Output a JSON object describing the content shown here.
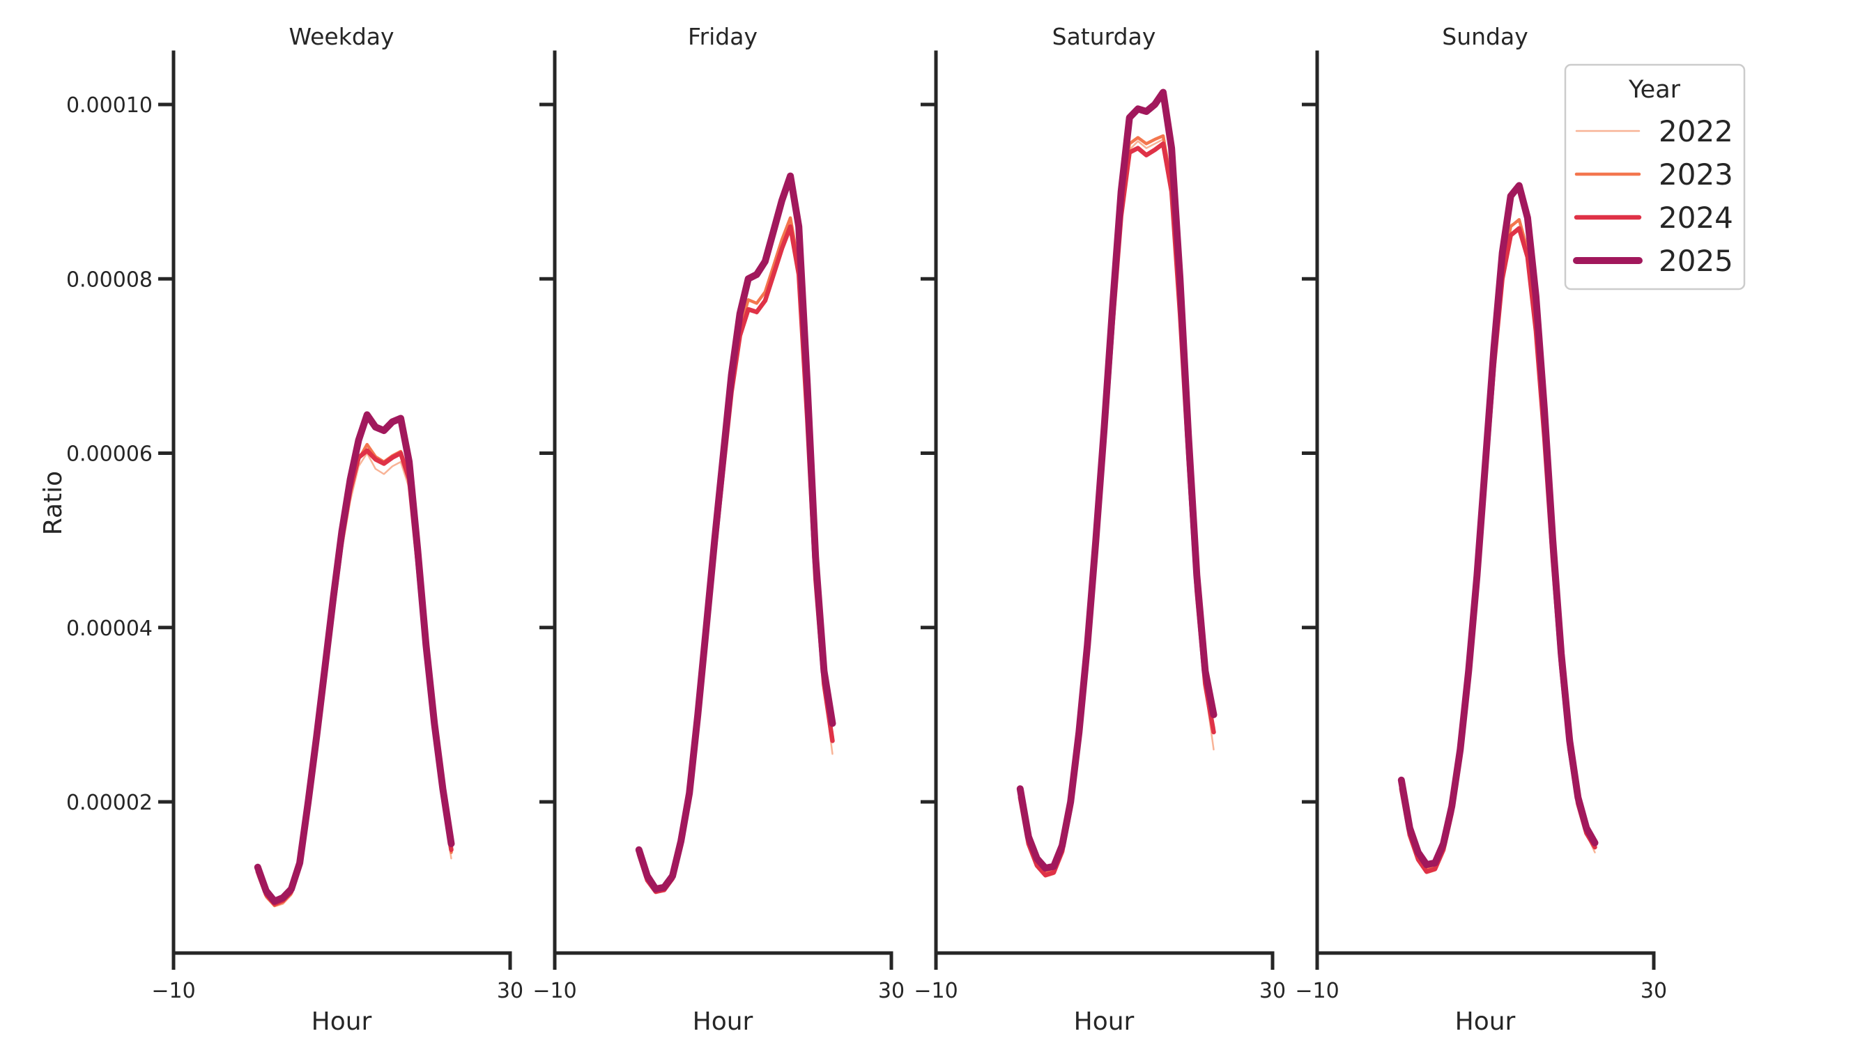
{
  "chart_data": {
    "type": "line",
    "facet_by": "day type",
    "xlabel": "Hour",
    "ylabel": "Ratio",
    "x_axis": {
      "label": "Hour",
      "range": [
        -10,
        30
      ],
      "ticks": [
        -10,
        30
      ],
      "tick_labels": [
        "−10",
        "30"
      ]
    },
    "y_axis": {
      "label": "Ratio",
      "ticks": [
        0.0001,
        8e-05,
        6e-05,
        4e-05,
        2e-05
      ],
      "tick_labels": [
        "0.00010",
        "0.00008",
        "0.00006",
        "0.00004",
        "0.00002"
      ],
      "grid": false
    },
    "legend": {
      "title": "Year",
      "position": "upper right",
      "entries": [
        {
          "label": "2022",
          "color": "#F8B396",
          "line_width": 2.5
        },
        {
          "label": "2023",
          "color": "#F3764E",
          "line_width": 4.5
        },
        {
          "label": "2024",
          "color": "#DF3247",
          "line_width": 6.5
        },
        {
          "label": "2025",
          "color": "#A1185C",
          "line_width": 10
        }
      ]
    },
    "hours": [
      0,
      1,
      2,
      3,
      4,
      5,
      6,
      7,
      8,
      9,
      10,
      11,
      12,
      13,
      14,
      15,
      16,
      17,
      18,
      19,
      20,
      21,
      22,
      23
    ],
    "panels": [
      {
        "title": "Weekday",
        "series": [
          {
            "name": "2022",
            "values": [
              1.15e-05,
              9e-06,
              8e-06,
              8.3e-06,
              9.3e-06,
              1.21e-05,
              1.88e-05,
              2.6e-05,
              3.38e-05,
              4.15e-05,
              4.88e-05,
              5.45e-05,
              5.85e-05,
              6e-05,
              5.82e-05,
              5.76e-05,
              5.85e-05,
              5.9e-05,
              5.6e-05,
              4.68e-05,
              3.62e-05,
              2.76e-05,
              2e-05,
              1.35e-05
            ]
          },
          {
            "name": "2023",
            "values": [
              1.18e-05,
              9.2e-06,
              8.1e-06,
              8.5e-06,
              9.5e-06,
              1.24e-05,
              1.92e-05,
              2.65e-05,
              3.43e-05,
              4.21e-05,
              4.95e-05,
              5.53e-05,
              5.93e-05,
              6.1e-05,
              5.96e-05,
              5.9e-05,
              5.97e-05,
              6.02e-05,
              5.72e-05,
              4.77e-05,
              3.72e-05,
              2.84e-05,
              2.06e-05,
              1.42e-05
            ]
          },
          {
            "name": "2024",
            "values": [
              1.2e-05,
              9.4e-06,
              8.3e-06,
              8.7e-06,
              9.7e-06,
              1.26e-05,
              1.94e-05,
              2.68e-05,
              3.46e-05,
              4.25e-05,
              5e-05,
              5.58e-05,
              5.95e-05,
              6.03e-05,
              5.93e-05,
              5.88e-05,
              5.95e-05,
              6e-05,
              5.7e-05,
              4.75e-05,
              3.7e-05,
              2.82e-05,
              2.08e-05,
              1.45e-05
            ]
          },
          {
            "name": "2025",
            "values": [
              1.25e-05,
              9.8e-06,
              8.6e-06,
              9e-06,
              1e-05,
              1.3e-05,
              2e-05,
              2.75e-05,
              3.55e-05,
              4.35e-05,
              5.1e-05,
              5.7e-05,
              6.15e-05,
              6.44e-05,
              6.3e-05,
              6.26e-05,
              6.36e-05,
              6.4e-05,
              5.9e-05,
              4.9e-05,
              3.8e-05,
              2.9e-05,
              2.15e-05,
              1.52e-05
            ]
          }
        ]
      },
      {
        "title": "Friday",
        "series": [
          {
            "name": "2022",
            "values": [
              1.37e-05,
              1.08e-05,
              9.5e-06,
              9.8e-06,
              1.11e-05,
              1.49e-05,
              2.02e-05,
              2.9e-05,
              3.87e-05,
              4.85e-05,
              5.77e-05,
              6.67e-05,
              7.36e-05,
              7.66e-05,
              7.6e-05,
              7.73e-05,
              8.03e-05,
              8.35e-05,
              8.6e-05,
              8.03e-05,
              6.36e-05,
              4.5e-05,
              3.3e-05,
              2.55e-05
            ]
          },
          {
            "name": "2023",
            "values": [
              1.4e-05,
              1.11e-05,
              9.7e-06,
              1e-05,
              1.13e-05,
              1.52e-05,
              2.06e-05,
              2.94e-05,
              3.93e-05,
              4.92e-05,
              5.85e-05,
              6.76e-05,
              7.42e-05,
              7.76e-05,
              7.72e-05,
              7.85e-05,
              8.15e-05,
              8.45e-05,
              8.7e-05,
              8.15e-05,
              6.47e-05,
              4.6e-05,
              3.38e-05,
              2.75e-05
            ]
          },
          {
            "name": "2024",
            "values": [
              1.4e-05,
              1.1e-05,
              9.7e-06,
              9.9e-06,
              1.12e-05,
              1.5e-05,
              2.04e-05,
              2.92e-05,
              3.9e-05,
              4.88e-05,
              5.8e-05,
              6.7e-05,
              7.35e-05,
              7.65e-05,
              7.62e-05,
              7.75e-05,
              8.05e-05,
              8.35e-05,
              8.6e-05,
              8.05e-05,
              6.4e-05,
              4.55e-05,
              3.35e-05,
              2.7e-05
            ]
          },
          {
            "name": "2025",
            "values": [
              1.45e-05,
              1.15e-05,
              1e-05,
              1.02e-05,
              1.15e-05,
              1.55e-05,
              2.1e-05,
              3e-05,
              4e-05,
              5e-05,
              5.95e-05,
              6.9e-05,
              7.6e-05,
              8e-05,
              8.05e-05,
              8.2e-05,
              8.55e-05,
              8.9e-05,
              9.18e-05,
              8.6e-05,
              6.8e-05,
              4.8e-05,
              3.5e-05,
              2.9e-05
            ]
          }
        ]
      },
      {
        "title": "Saturday",
        "series": [
          {
            "name": "2022",
            "values": [
              2.02e-05,
              1.5e-05,
              1.25e-05,
              1.14e-05,
              1.17e-05,
              1.41e-05,
              1.9e-05,
              2.7e-05,
              3.66e-05,
              4.84e-05,
              6.1e-05,
              7.45e-05,
              8.68e-05,
              9.48e-05,
              9.58e-05,
              9.5e-05,
              9.55e-05,
              9.6e-05,
              9.02e-05,
              7.6e-05,
              5.9e-05,
              4.38e-05,
              3.3e-05,
              2.6e-05
            ]
          },
          {
            "name": "2023",
            "values": [
              2.07e-05,
              1.54e-05,
              1.29e-05,
              1.18e-05,
              1.21e-05,
              1.45e-05,
              1.95e-05,
              2.75e-05,
              3.74e-05,
              4.92e-05,
              6.2e-05,
              7.56e-05,
              8.8e-05,
              9.55e-05,
              9.62e-05,
              9.55e-05,
              9.6e-05,
              9.64e-05,
              9.08e-05,
              7.67e-05,
              6e-05,
              4.46e-05,
              3.38e-05,
              2.85e-05
            ]
          },
          {
            "name": "2024",
            "values": [
              2.05e-05,
              1.52e-05,
              1.27e-05,
              1.16e-05,
              1.19e-05,
              1.43e-05,
              1.93e-05,
              2.72e-05,
              3.7e-05,
              4.88e-05,
              6.15e-05,
              7.5e-05,
              8.72e-05,
              9.45e-05,
              9.5e-05,
              9.42e-05,
              9.48e-05,
              9.55e-05,
              9e-05,
              7.6e-05,
              5.95e-05,
              4.42e-05,
              3.35e-05,
              2.8e-05
            ]
          },
          {
            "name": "2025",
            "values": [
              2.15e-05,
              1.6e-05,
              1.35e-05,
              1.24e-05,
              1.26e-05,
              1.5e-05,
              2e-05,
              2.8e-05,
              3.8e-05,
              5e-05,
              6.3e-05,
              7.7e-05,
              9e-05,
              9.85e-05,
              9.95e-05,
              9.92e-05,
              0.0001,
              0.0001014,
              9.5e-05,
              8e-05,
              6.2e-05,
              4.6e-05,
              3.5e-05,
              3e-05
            ]
          }
        ]
      },
      {
        "title": "Sunday",
        "series": [
          {
            "name": "2022",
            "values": [
              2.12e-05,
              1.6e-05,
              1.32e-05,
              1.18e-05,
              1.21e-05,
              1.44e-05,
              1.87e-05,
              2.5e-05,
              3.38e-05,
              4.46e-05,
              5.73e-05,
              7e-05,
              8.05e-05,
              8.62e-05,
              8.66e-05,
              8.3e-05,
              7.43e-05,
              6.2e-05,
              4.8e-05,
              3.56e-05,
              2.6e-05,
              1.97e-05,
              1.63e-05,
              1.42e-05
            ]
          },
          {
            "name": "2023",
            "values": [
              2.17e-05,
              1.64e-05,
              1.36e-05,
              1.22e-05,
              1.25e-05,
              1.47e-05,
              1.9e-05,
              2.54e-05,
              3.43e-05,
              4.52e-05,
              5.8e-05,
              7.06e-05,
              8.08e-05,
              8.6e-05,
              8.68e-05,
              8.33e-05,
              7.46e-05,
              6.23e-05,
              4.82e-05,
              3.58e-05,
              2.62e-05,
              2e-05,
              1.66e-05,
              1.5e-05
            ]
          },
          {
            "name": "2024",
            "values": [
              2.15e-05,
              1.62e-05,
              1.34e-05,
              1.2e-05,
              1.23e-05,
              1.45e-05,
              1.88e-05,
              2.52e-05,
              3.4e-05,
              4.48e-05,
              5.76e-05,
              7e-05,
              8e-05,
              8.5e-05,
              8.58e-05,
              8.25e-05,
              7.4e-05,
              6.18e-05,
              4.78e-05,
              3.55e-05,
              2.6e-05,
              1.98e-05,
              1.64e-05,
              1.48e-05
            ]
          },
          {
            "name": "2025",
            "values": [
              2.25e-05,
              1.7e-05,
              1.42e-05,
              1.28e-05,
              1.3e-05,
              1.52e-05,
              1.95e-05,
              2.6e-05,
              3.5e-05,
              4.6e-05,
              5.9e-05,
              7.2e-05,
              8.3e-05,
              8.95e-05,
              9.07e-05,
              8.7e-05,
              7.8e-05,
              6.5e-05,
              5e-05,
              3.7e-05,
              2.7e-05,
              2.05e-05,
              1.7e-05,
              1.53e-05
            ]
          }
        ]
      }
    ]
  }
}
